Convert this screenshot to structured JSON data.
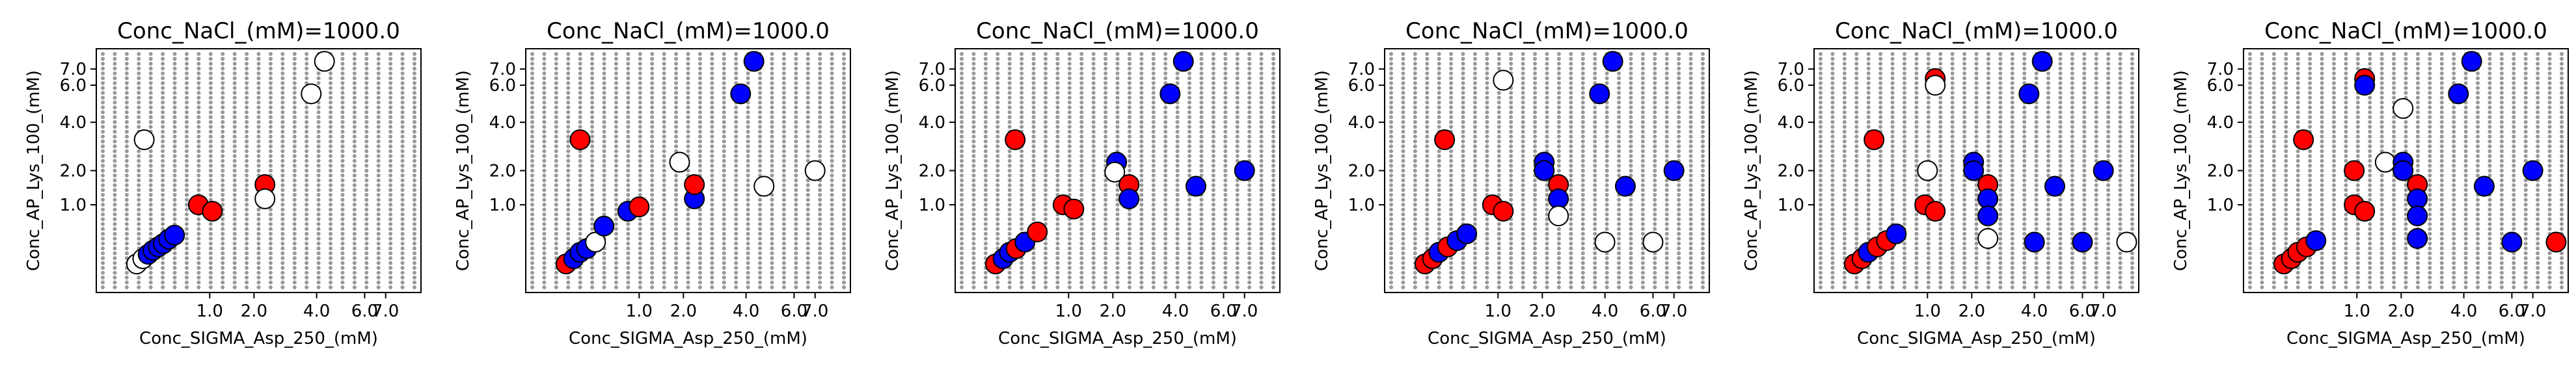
{
  "style": {
    "red": "#ff0000",
    "blue": "#0000ff",
    "white": "#ffffff",
    "grid_dot": "#999999",
    "edge": "#000000"
  },
  "chart_data": [
    {
      "type": "scatter",
      "title": "Conc_NaCl_(mM)=1000.0",
      "xlabel": "Conc_SIGMA_Asp_250_(mM)",
      "ylabel": "Conc_AP_Lys_100_(mM)",
      "x_scale": "sqrt",
      "y_scale": "sqrt",
      "xlim": [
        0,
        8.5
      ],
      "ylim": [
        0,
        8.0
      ],
      "xticks": [
        1.0,
        2.0,
        4.0,
        6.0,
        7.0
      ],
      "yticks": [
        1.0,
        2.0,
        4.0,
        6.0,
        7.0
      ],
      "xtick_labels": [
        "1.0",
        "2.0",
        "4.0",
        "6.0",
        "7.0"
      ],
      "ytick_labels": [
        "1.0",
        "2.0",
        "4.0",
        "6.0",
        "7.0"
      ],
      "background_grid": "gray dots",
      "points": [
        {
          "x": 0.1,
          "y": 0.08,
          "c": "white"
        },
        {
          "x": 0.14,
          "y": 0.12,
          "c": "white"
        },
        {
          "x": 0.18,
          "y": 0.16,
          "c": "blue"
        },
        {
          "x": 0.22,
          "y": 0.2,
          "c": "blue"
        },
        {
          "x": 0.27,
          "y": 0.24,
          "c": "blue"
        },
        {
          "x": 0.32,
          "y": 0.28,
          "c": "blue"
        },
        {
          "x": 0.38,
          "y": 0.34,
          "c": "blue"
        },
        {
          "x": 0.45,
          "y": 0.4,
          "c": "blue"
        },
        {
          "x": 0.8,
          "y": 1.0,
          "c": "red"
        },
        {
          "x": 1.05,
          "y": 0.85,
          "c": "red"
        },
        {
          "x": 2.3,
          "y": 1.55,
          "c": "red"
        },
        {
          "x": 2.3,
          "y": 1.15,
          "c": "white"
        },
        {
          "x": 0.15,
          "y": 3.2,
          "c": "white"
        },
        {
          "x": 3.8,
          "y": 5.5,
          "c": "white"
        },
        {
          "x": 4.3,
          "y": 7.5,
          "c": "white"
        }
      ]
    },
    {
      "type": "scatter",
      "title": "Conc_NaCl_(mM)=1000.0",
      "xlabel": "Conc_SIGMA_Asp_250_(mM)",
      "ylabel": "Conc_AP_Lys_100_(mM)",
      "x_scale": "sqrt",
      "y_scale": "sqrt",
      "xlim": [
        0,
        8.5
      ],
      "ylim": [
        0,
        8.0
      ],
      "xticks": [
        1.0,
        2.0,
        4.0,
        6.0,
        7.0
      ],
      "yticks": [
        1.0,
        2.0,
        4.0,
        6.0,
        7.0
      ],
      "xtick_labels": [
        "1.0",
        "2.0",
        "4.0",
        "6.0",
        "7.0"
      ],
      "ytick_labels": [
        "1.0",
        "2.0",
        "4.0",
        "6.0",
        "7.0"
      ],
      "background_grid": "gray dots",
      "points": [
        {
          "x": 0.1,
          "y": 0.08,
          "c": "red"
        },
        {
          "x": 0.15,
          "y": 0.12,
          "c": "blue"
        },
        {
          "x": 0.2,
          "y": 0.18,
          "c": "blue"
        },
        {
          "x": 0.26,
          "y": 0.22,
          "c": "blue"
        },
        {
          "x": 0.35,
          "y": 0.3,
          "c": "white"
        },
        {
          "x": 0.45,
          "y": 0.55,
          "c": "blue"
        },
        {
          "x": 0.8,
          "y": 0.85,
          "c": "blue"
        },
        {
          "x": 1.0,
          "y": 0.95,
          "c": "red"
        },
        {
          "x": 2.3,
          "y": 1.15,
          "c": "blue"
        },
        {
          "x": 2.3,
          "y": 1.55,
          "c": "red"
        },
        {
          "x": 1.9,
          "y": 2.3,
          "c": "white"
        },
        {
          "x": 0.2,
          "y": 3.2,
          "c": "red"
        },
        {
          "x": 3.8,
          "y": 5.5,
          "c": "blue"
        },
        {
          "x": 4.3,
          "y": 7.5,
          "c": "blue"
        },
        {
          "x": 4.7,
          "y": 1.5,
          "c": "white"
        },
        {
          "x": 7.0,
          "y": 2.0,
          "c": "white"
        }
      ]
    },
    {
      "type": "scatter",
      "title": "Conc_NaCl_(mM)=1000.0",
      "xlabel": "Conc_SIGMA_Asp_250_(mM)",
      "ylabel": "Conc_AP_Lys_100_(mM)",
      "x_scale": "sqrt",
      "y_scale": "sqrt",
      "xlim": [
        0,
        8.5
      ],
      "ylim": [
        0,
        8.0
      ],
      "xticks": [
        1.0,
        2.0,
        4.0,
        6.0,
        7.0
      ],
      "yticks": [
        1.0,
        2.0,
        4.0,
        6.0,
        7.0
      ],
      "xtick_labels": [
        "1.0",
        "2.0",
        "4.0",
        "6.0",
        "7.0"
      ],
      "ytick_labels": [
        "1.0",
        "2.0",
        "4.0",
        "6.0",
        "7.0"
      ],
      "background_grid": "gray dots",
      "points": [
        {
          "x": 0.1,
          "y": 0.08,
          "c": "red"
        },
        {
          "x": 0.15,
          "y": 0.12,
          "c": "blue"
        },
        {
          "x": 0.2,
          "y": 0.18,
          "c": "blue"
        },
        {
          "x": 0.26,
          "y": 0.22,
          "c": "red"
        },
        {
          "x": 0.35,
          "y": 0.3,
          "c": "blue"
        },
        {
          "x": 0.5,
          "y": 0.45,
          "c": "red"
        },
        {
          "x": 0.9,
          "y": 1.0,
          "c": "red"
        },
        {
          "x": 1.1,
          "y": 0.9,
          "c": "red"
        },
        {
          "x": 2.1,
          "y": 2.3,
          "c": "blue"
        },
        {
          "x": 2.05,
          "y": 1.95,
          "c": "white"
        },
        {
          "x": 2.45,
          "y": 1.55,
          "c": "red"
        },
        {
          "x": 2.45,
          "y": 1.15,
          "c": "blue"
        },
        {
          "x": 0.25,
          "y": 3.2,
          "c": "red"
        },
        {
          "x": 3.8,
          "y": 5.5,
          "c": "blue"
        },
        {
          "x": 4.3,
          "y": 7.5,
          "c": "blue"
        },
        {
          "x": 4.8,
          "y": 1.5,
          "c": "blue"
        },
        {
          "x": 7.0,
          "y": 2.0,
          "c": "blue"
        }
      ]
    },
    {
      "type": "scatter",
      "title": "Conc_NaCl_(mM)=1000.0",
      "xlabel": "Conc_SIGMA_Asp_250_(mM)",
      "ylabel": "Conc_AP_Lys_100_(mM)",
      "x_scale": "sqrt",
      "y_scale": "sqrt",
      "xlim": [
        0,
        8.5
      ],
      "ylim": [
        0,
        8.0
      ],
      "xticks": [
        1.0,
        2.0,
        4.0,
        6.0,
        7.0
      ],
      "yticks": [
        1.0,
        2.0,
        4.0,
        6.0,
        7.0
      ],
      "xtick_labels": [
        "1.0",
        "2.0",
        "4.0",
        "6.0",
        "7.0"
      ],
      "ytick_labels": [
        "1.0",
        "2.0",
        "4.0",
        "6.0",
        "7.0"
      ],
      "background_grid": "gray dots",
      "points": [
        {
          "x": 0.1,
          "y": 0.08,
          "c": "red"
        },
        {
          "x": 0.15,
          "y": 0.12,
          "c": "red"
        },
        {
          "x": 0.2,
          "y": 0.18,
          "c": "blue"
        },
        {
          "x": 0.28,
          "y": 0.24,
          "c": "red"
        },
        {
          "x": 0.38,
          "y": 0.32,
          "c": "blue"
        },
        {
          "x": 0.5,
          "y": 0.42,
          "c": "blue"
        },
        {
          "x": 0.9,
          "y": 1.0,
          "c": "red"
        },
        {
          "x": 1.1,
          "y": 0.85,
          "c": "red"
        },
        {
          "x": 2.05,
          "y": 2.3,
          "c": "blue"
        },
        {
          "x": 2.05,
          "y": 2.0,
          "c": "blue"
        },
        {
          "x": 2.45,
          "y": 1.55,
          "c": "red"
        },
        {
          "x": 2.45,
          "y": 1.15,
          "c": "blue"
        },
        {
          "x": 2.45,
          "y": 0.75,
          "c": "white"
        },
        {
          "x": 0.25,
          "y": 3.2,
          "c": "red"
        },
        {
          "x": 1.1,
          "y": 6.3,
          "c": "white"
        },
        {
          "x": 3.8,
          "y": 5.5,
          "c": "blue"
        },
        {
          "x": 4.3,
          "y": 7.5,
          "c": "blue"
        },
        {
          "x": 4.8,
          "y": 1.5,
          "c": "blue"
        },
        {
          "x": 7.0,
          "y": 2.0,
          "c": "blue"
        },
        {
          "x": 4.0,
          "y": 0.3,
          "c": "white"
        },
        {
          "x": 6.0,
          "y": 0.3,
          "c": "white"
        }
      ]
    },
    {
      "type": "scatter",
      "title": "Conc_NaCl_(mM)=1000.0",
      "xlabel": "Conc_SIGMA_Asp_250_(mM)",
      "ylabel": "Conc_AP_Lys_100_(mM)",
      "x_scale": "sqrt",
      "y_scale": "sqrt",
      "xlim": [
        0,
        8.5
      ],
      "ylim": [
        0,
        8.0
      ],
      "xticks": [
        1.0,
        2.0,
        4.0,
        6.0,
        7.0
      ],
      "yticks": [
        1.0,
        2.0,
        4.0,
        6.0,
        7.0
      ],
      "xtick_labels": [
        "1.0",
        "2.0",
        "4.0",
        "6.0",
        "7.0"
      ],
      "ytick_labels": [
        "1.0",
        "2.0",
        "4.0",
        "6.0",
        "7.0"
      ],
      "background_grid": "gray dots",
      "points": [
        {
          "x": 0.1,
          "y": 0.08,
          "c": "red"
        },
        {
          "x": 0.15,
          "y": 0.12,
          "c": "red"
        },
        {
          "x": 0.2,
          "y": 0.18,
          "c": "blue"
        },
        {
          "x": 0.28,
          "y": 0.24,
          "c": "red"
        },
        {
          "x": 0.38,
          "y": 0.32,
          "c": "red"
        },
        {
          "x": 0.5,
          "y": 0.42,
          "c": "blue"
        },
        {
          "x": 0.95,
          "y": 1.0,
          "c": "red"
        },
        {
          "x": 1.15,
          "y": 0.85,
          "c": "red"
        },
        {
          "x": 1.0,
          "y": 2.0,
          "c": "white"
        },
        {
          "x": 2.05,
          "y": 2.3,
          "c": "blue"
        },
        {
          "x": 2.05,
          "y": 2.0,
          "c": "blue"
        },
        {
          "x": 2.45,
          "y": 1.55,
          "c": "red"
        },
        {
          "x": 2.45,
          "y": 1.15,
          "c": "blue"
        },
        {
          "x": 2.45,
          "y": 0.75,
          "c": "blue"
        },
        {
          "x": 2.45,
          "y": 0.35,
          "c": "white"
        },
        {
          "x": 0.25,
          "y": 3.2,
          "c": "red"
        },
        {
          "x": 1.15,
          "y": 6.4,
          "c": "red"
        },
        {
          "x": 1.15,
          "y": 6.0,
          "c": "white"
        },
        {
          "x": 3.8,
          "y": 5.5,
          "c": "blue"
        },
        {
          "x": 4.3,
          "y": 7.5,
          "c": "blue"
        },
        {
          "x": 4.8,
          "y": 1.5,
          "c": "blue"
        },
        {
          "x": 7.0,
          "y": 2.0,
          "c": "blue"
        },
        {
          "x": 4.0,
          "y": 0.3,
          "c": "blue"
        },
        {
          "x": 6.0,
          "y": 0.3,
          "c": "blue"
        },
        {
          "x": 8.2,
          "y": 0.3,
          "c": "white"
        }
      ]
    },
    {
      "type": "scatter",
      "title": "Conc_NaCl_(mM)=1000.0",
      "xlabel": "Conc_SIGMA_Asp_250_(mM)",
      "ylabel": "Conc_AP_Lys_100_(mM)",
      "x_scale": "sqrt",
      "y_scale": "sqrt",
      "xlim": [
        0,
        8.5
      ],
      "ylim": [
        0,
        8.0
      ],
      "xticks": [
        1.0,
        2.0,
        4.0,
        6.0,
        7.0
      ],
      "yticks": [
        1.0,
        2.0,
        4.0,
        6.0,
        7.0
      ],
      "xtick_labels": [
        "1.0",
        "2.0",
        "4.0",
        "6.0",
        "7.0"
      ],
      "ytick_labels": [
        "1.0",
        "2.0",
        "4.0",
        "6.0",
        "7.0"
      ],
      "background_grid": "gray dots",
      "points": [
        {
          "x": 0.1,
          "y": 0.08,
          "c": "red"
        },
        {
          "x": 0.15,
          "y": 0.12,
          "c": "red"
        },
        {
          "x": 0.2,
          "y": 0.18,
          "c": "red"
        },
        {
          "x": 0.28,
          "y": 0.24,
          "c": "red"
        },
        {
          "x": 0.38,
          "y": 0.32,
          "c": "blue"
        },
        {
          "x": 0.95,
          "y": 2.0,
          "c": "red"
        },
        {
          "x": 0.95,
          "y": 1.0,
          "c": "red"
        },
        {
          "x": 1.15,
          "y": 0.85,
          "c": "red"
        },
        {
          "x": 1.6,
          "y": 2.3,
          "c": "white"
        },
        {
          "x": 2.05,
          "y": 2.3,
          "c": "blue"
        },
        {
          "x": 2.05,
          "y": 2.0,
          "c": "blue"
        },
        {
          "x": 2.05,
          "y": 4.7,
          "c": "white"
        },
        {
          "x": 2.45,
          "y": 1.55,
          "c": "red"
        },
        {
          "x": 2.45,
          "y": 1.15,
          "c": "blue"
        },
        {
          "x": 2.45,
          "y": 0.75,
          "c": "blue"
        },
        {
          "x": 2.45,
          "y": 0.35,
          "c": "blue"
        },
        {
          "x": 0.25,
          "y": 3.2,
          "c": "red"
        },
        {
          "x": 1.15,
          "y": 6.4,
          "c": "red"
        },
        {
          "x": 1.15,
          "y": 6.0,
          "c": "blue"
        },
        {
          "x": 3.8,
          "y": 5.5,
          "c": "blue"
        },
        {
          "x": 4.3,
          "y": 7.5,
          "c": "blue"
        },
        {
          "x": 4.8,
          "y": 1.5,
          "c": "blue"
        },
        {
          "x": 7.0,
          "y": 2.0,
          "c": "blue"
        },
        {
          "x": 6.0,
          "y": 0.3,
          "c": "blue"
        },
        {
          "x": 8.2,
          "y": 0.3,
          "c": "red"
        }
      ]
    }
  ]
}
